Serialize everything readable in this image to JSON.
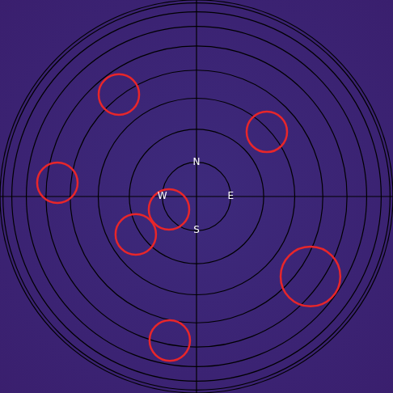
{
  "chart_data": {
    "type": "sky_map",
    "xlim": [
      -1,
      1
    ],
    "ylim": [
      -1,
      1
    ],
    "tick_labels": false,
    "grid": true,
    "rings": [
      0.174,
      0.342,
      0.5,
      0.643,
      0.766,
      0.866,
      0.94,
      0.985,
      1
    ],
    "compass": [
      "N",
      "E",
      "S",
      "W"
    ],
    "sources": {
      "color": "#e8262a",
      "x": [
        -0.395,
        0.358,
        -0.708,
        -0.14,
        -0.309,
        0.58,
        -0.136
      ],
      "y": [
        0.519,
        0.329,
        0.07,
        -0.066,
        -0.193,
        -0.407,
        -0.733
      ],
      "radius": [
        0.103,
        0.103,
        0.103,
        0.103,
        0.103,
        0.152,
        0.103
      ]
    }
  }
}
